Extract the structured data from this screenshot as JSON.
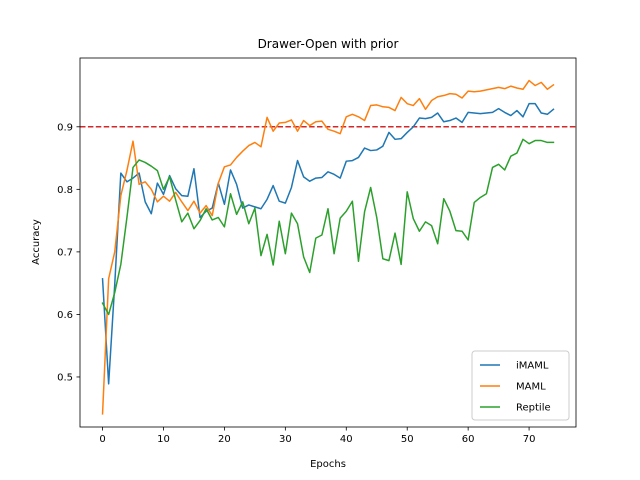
{
  "chart_data": {
    "type": "line",
    "title": "Drawer-Open with prior",
    "xlabel": "Epochs",
    "ylabel": "Accuracy",
    "xlim": [
      -3.7,
      77.7
    ],
    "ylim": [
      0.42,
      1.01
    ],
    "xticks": [
      0,
      10,
      20,
      30,
      40,
      50,
      60,
      70
    ],
    "yticks": [
      0.5,
      0.6,
      0.7,
      0.8,
      0.9
    ],
    "grid": false,
    "legend_position": "lower-right",
    "reference_line": {
      "y": 0.9,
      "color": "#d62728",
      "style": "dashed"
    },
    "series": [
      {
        "name": "iMAML",
        "color": "#1f77b4",
        "values": [
          0.657,
          0.489,
          0.648,
          0.826,
          0.812,
          0.818,
          0.826,
          0.78,
          0.761,
          0.81,
          0.792,
          0.822,
          0.801,
          0.79,
          0.789,
          0.833,
          0.755,
          0.765,
          0.77,
          0.81,
          0.776,
          0.831,
          0.808,
          0.77,
          0.775,
          0.772,
          0.769,
          0.784,
          0.806,
          0.781,
          0.778,
          0.803,
          0.846,
          0.82,
          0.813,
          0.818,
          0.819,
          0.828,
          0.824,
          0.818,
          0.845,
          0.846,
          0.851,
          0.866,
          0.862,
          0.863,
          0.869,
          0.891,
          0.88,
          0.881,
          0.891,
          0.9,
          0.914,
          0.913,
          0.915,
          0.922,
          0.908,
          0.91,
          0.914,
          0.907,
          0.923,
          0.922,
          0.921,
          0.922,
          0.923,
          0.929,
          0.923,
          0.918,
          0.926,
          0.916,
          0.937,
          0.937,
          0.922,
          0.92,
          0.928
        ]
      },
      {
        "name": "MAML",
        "color": "#ff7f0e",
        "values": [
          0.441,
          0.657,
          0.7,
          0.79,
          0.83,
          0.877,
          0.808,
          0.812,
          0.8,
          0.78,
          0.789,
          0.781,
          0.795,
          0.78,
          0.766,
          0.781,
          0.762,
          0.774,
          0.758,
          0.81,
          0.836,
          0.839,
          0.851,
          0.861,
          0.87,
          0.875,
          0.868,
          0.915,
          0.893,
          0.906,
          0.907,
          0.911,
          0.893,
          0.91,
          0.902,
          0.908,
          0.909,
          0.896,
          0.893,
          0.889,
          0.916,
          0.92,
          0.916,
          0.91,
          0.934,
          0.935,
          0.932,
          0.931,
          0.926,
          0.947,
          0.937,
          0.934,
          0.945,
          0.928,
          0.942,
          0.948,
          0.95,
          0.953,
          0.952,
          0.946,
          0.957,
          0.956,
          0.957,
          0.959,
          0.961,
          0.963,
          0.961,
          0.965,
          0.962,
          0.96,
          0.974,
          0.966,
          0.971,
          0.96,
          0.967
        ]
      },
      {
        "name": "Reptile",
        "color": "#2ca02c",
        "values": [
          0.618,
          0.6,
          0.635,
          0.68,
          0.755,
          0.835,
          0.847,
          0.843,
          0.837,
          0.83,
          0.8,
          0.82,
          0.783,
          0.748,
          0.762,
          0.737,
          0.75,
          0.769,
          0.751,
          0.755,
          0.74,
          0.793,
          0.76,
          0.78,
          0.745,
          0.77,
          0.694,
          0.728,
          0.679,
          0.749,
          0.697,
          0.762,
          0.745,
          0.692,
          0.667,
          0.722,
          0.727,
          0.769,
          0.697,
          0.754,
          0.765,
          0.781,
          0.685,
          0.764,
          0.803,
          0.755,
          0.689,
          0.686,
          0.73,
          0.68,
          0.796,
          0.753,
          0.733,
          0.748,
          0.742,
          0.713,
          0.785,
          0.765,
          0.734,
          0.733,
          0.719,
          0.779,
          0.787,
          0.793,
          0.835,
          0.84,
          0.831,
          0.853,
          0.858,
          0.88,
          0.873,
          0.878,
          0.878,
          0.875,
          0.875
        ]
      }
    ]
  }
}
